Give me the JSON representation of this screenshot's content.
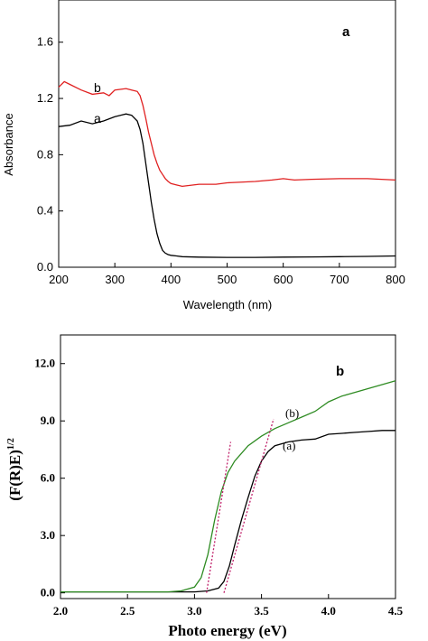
{
  "chart_data": [
    {
      "type": "line",
      "panel_label": "a",
      "title": "",
      "xlabel": "Wavelength (nm)",
      "ylabel": "Absorbance",
      "xlim": [
        200,
        800
      ],
      "ylim": [
        0.0,
        1.9
      ],
      "xticks": [
        "200",
        "300",
        "400",
        "500",
        "600",
        "700",
        "800"
      ],
      "yticks": [
        "0.0",
        "0.4",
        "0.8",
        "1.2",
        "1.6"
      ],
      "grid": false,
      "series": [
        {
          "name": "a",
          "color": "#000000",
          "x": [
            200,
            220,
            240,
            260,
            280,
            300,
            320,
            330,
            340,
            345,
            350,
            355,
            360,
            365,
            370,
            375,
            380,
            385,
            390,
            395,
            400,
            410,
            420,
            450,
            500,
            550,
            600,
            650,
            700,
            750,
            800
          ],
          "y": [
            1.0,
            1.01,
            1.04,
            1.02,
            1.04,
            1.07,
            1.09,
            1.08,
            1.04,
            0.98,
            0.88,
            0.74,
            0.6,
            0.46,
            0.34,
            0.24,
            0.17,
            0.12,
            0.1,
            0.09,
            0.085,
            0.08,
            0.075,
            0.072,
            0.07,
            0.07,
            0.072,
            0.073,
            0.075,
            0.077,
            0.08
          ]
        },
        {
          "name": "b",
          "color": "#e02020",
          "x": [
            200,
            210,
            220,
            240,
            260,
            280,
            290,
            300,
            320,
            330,
            340,
            345,
            350,
            355,
            360,
            365,
            370,
            375,
            380,
            385,
            390,
            395,
            400,
            410,
            420,
            430,
            450,
            480,
            500,
            550,
            580,
            600,
            620,
            650,
            700,
            750,
            800
          ],
          "y": [
            1.28,
            1.32,
            1.3,
            1.26,
            1.23,
            1.24,
            1.22,
            1.26,
            1.27,
            1.26,
            1.25,
            1.22,
            1.15,
            1.06,
            0.96,
            0.88,
            0.8,
            0.74,
            0.69,
            0.66,
            0.63,
            0.61,
            0.595,
            0.585,
            0.575,
            0.58,
            0.59,
            0.59,
            0.6,
            0.61,
            0.62,
            0.63,
            0.62,
            0.625,
            0.63,
            0.63,
            0.62
          ]
        }
      ]
    },
    {
      "type": "line",
      "panel_label": "b",
      "title": "",
      "xlabel": "Photo energy (eV)",
      "ylabel": "(F(R)E)",
      "ylabel_superscript": "1/2",
      "xlim": [
        2.0,
        4.5
      ],
      "ylim": [
        -0.3,
        13.5
      ],
      "xticks": [
        "2.0",
        "2.5",
        "3.0",
        "3.5",
        "4.0",
        "4.5"
      ],
      "yticks": [
        "0.0",
        "3.0",
        "6.0",
        "9.0",
        "12.0"
      ],
      "grid": false,
      "series": [
        {
          "name": "(a)",
          "color": "#000000",
          "x": [
            2.0,
            2.5,
            3.0,
            3.1,
            3.18,
            3.22,
            3.26,
            3.3,
            3.35,
            3.4,
            3.45,
            3.5,
            3.55,
            3.6,
            3.7,
            3.8,
            3.9,
            4.0,
            4.1,
            4.2,
            4.3,
            4.4,
            4.5
          ],
          "y": [
            0.05,
            0.05,
            0.05,
            0.1,
            0.25,
            0.6,
            1.4,
            2.5,
            3.8,
            5.0,
            6.1,
            6.9,
            7.4,
            7.7,
            7.9,
            8.0,
            8.05,
            8.3,
            8.35,
            8.4,
            8.45,
            8.5,
            8.5
          ]
        },
        {
          "name": "(b)",
          "color": "#2e8b22",
          "x": [
            2.0,
            2.5,
            2.8,
            2.9,
            3.0,
            3.05,
            3.1,
            3.15,
            3.2,
            3.25,
            3.3,
            3.4,
            3.5,
            3.6,
            3.7,
            3.8,
            3.9,
            4.0,
            4.1,
            4.2,
            4.3,
            4.4,
            4.5
          ],
          "y": [
            0.05,
            0.05,
            0.05,
            0.1,
            0.3,
            0.8,
            2.0,
            3.8,
            5.3,
            6.3,
            6.9,
            7.7,
            8.2,
            8.6,
            8.9,
            9.2,
            9.5,
            10.0,
            10.3,
            10.5,
            10.7,
            10.9,
            11.1
          ]
        }
      ],
      "tangent_lines": [
        {
          "color": "#c0206a",
          "x": [
            3.09,
            3.27
          ],
          "y": [
            0.0,
            7.9
          ]
        },
        {
          "color": "#c0206a",
          "x": [
            3.22,
            3.59
          ],
          "y": [
            0.0,
            9.1
          ]
        }
      ]
    }
  ]
}
